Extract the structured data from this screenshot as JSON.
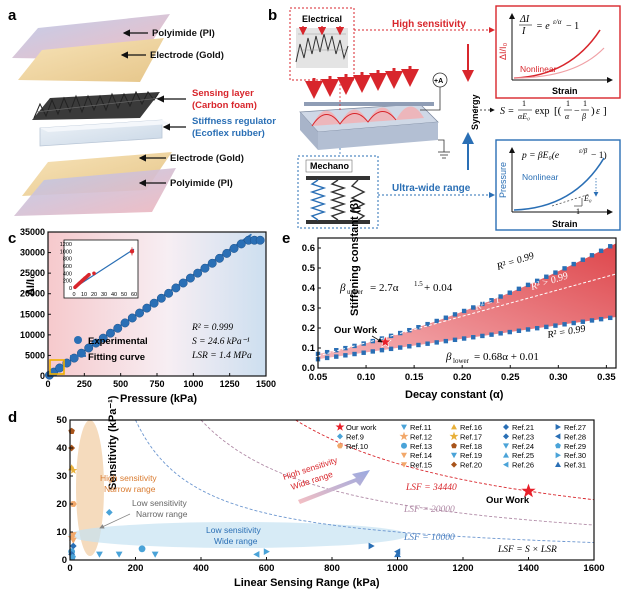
{
  "panel_labels": {
    "a": "a",
    "b": "b",
    "c": "c",
    "d": "d",
    "e": "e"
  },
  "panel_a": {
    "layers": [
      {
        "label": "Polyimide (PI)",
        "color": "#111111"
      },
      {
        "label": "Electrode (Gold)",
        "color": "#111111"
      },
      {
        "label": "Sensing layer",
        "color": "#d8262c"
      },
      {
        "label": "(Carbon foam)",
        "color": "#d8262c"
      },
      {
        "label": "Stiffness regulator",
        "color": "#2a6fb5"
      },
      {
        "label": "(Ecoflex rubber)",
        "color": "#2a6fb5"
      },
      {
        "label": "Electrode (Gold)",
        "color": "#111111"
      },
      {
        "label": "Polyimide (PI)",
        "color": "#111111"
      }
    ]
  },
  "panel_b": {
    "electrical_label": "Electrical",
    "mechano_label": "Mechano",
    "high_sensitivity": "High sensitivity",
    "ultra_wide": "Ultra-wide range",
    "synergy": "Synergy",
    "ammeter": "+A",
    "top_eq": {
      "lhs": "ΔI",
      "lhs_den": "I",
      "rhs": "= e",
      "exp": "ε/α",
      "tail": " − 1"
    },
    "top_nonlinear": "Nonlinear",
    "top_strain": "Strain",
    "top_ylabel": "ΔI/I₀",
    "mid_eq": {
      "lhs": "S =",
      "num": "1",
      "den": "αE₀",
      "mid": "exp",
      "f1n": "1",
      "f1d": "α",
      "f2n": "1",
      "f2d": "β",
      "tail": "ε"
    },
    "bot_eq": {
      "lhs": "p = βE₀(e",
      "exp": "ε/β",
      "tail": " − 1)"
    },
    "bot_nonlinear": "Nonlinear",
    "bot_one": "1",
    "bot_e0": "E₀",
    "bot_strain": "Strain",
    "bot_ylabel": "Pressure",
    "colors": {
      "red": "#d8262c",
      "blue": "#2a6fb5"
    }
  },
  "panel_c": {
    "xlabel": "Pressure (kPa)",
    "ylabel": "ΔI/I₀",
    "r2": "R² = 0.999",
    "s": "S = 24.6 kPa⁻¹",
    "lsr": "LSR = 1.4 MPa",
    "legend": [
      "Experimental",
      "Fitting curve"
    ]
  },
  "panel_d": {
    "xlabel": "Linear Sensing Range (kPa)",
    "ylabel": "Sensitivity (kPa⁻¹)",
    "annotations": {
      "hsnr1": "High sensitivity",
      "hsnr2": "Narrow range",
      "lsnr1": "Low sensitivity",
      "lsnr2": "Narrow range",
      "lswr1": "Low sensitivity",
      "lswr2": "Wide range",
      "hswr1": "High sensitivity",
      "hswr2": "Wide range",
      "lsf1": "LSF = 34440",
      "lsf2": "LSF = 20000",
      "lsf3": "LSF = 10000",
      "our": "Our Work",
      "formula": "LSF = S × LSR"
    },
    "legend": [
      {
        "name": "Our work",
        "color": "#e8202a",
        "shape": "star"
      },
      {
        "name": "Ref.9",
        "color": "#4aa3d8",
        "shape": "diamond"
      },
      {
        "name": "Ref.10",
        "color": "#f2a86a",
        "shape": "hexagon"
      },
      {
        "name": "Ref.11",
        "color": "#4aa3d8",
        "shape": "triangle-down"
      },
      {
        "name": "Ref.12",
        "color": "#f2a86a",
        "shape": "star"
      },
      {
        "name": "Ref.13",
        "color": "#4aa3d8",
        "shape": "circle"
      },
      {
        "name": "Ref.14",
        "color": "#f2a86a",
        "shape": "triangle-down"
      },
      {
        "name": "Ref.15",
        "color": "#f2a86a",
        "shape": "triangle-down"
      },
      {
        "name": "Ref.16",
        "color": "#e8b03a",
        "shape": "triangle-up"
      },
      {
        "name": "Ref.17",
        "color": "#e8b03a",
        "shape": "star"
      },
      {
        "name": "Ref.18",
        "color": "#a8541a",
        "shape": "pentagon"
      },
      {
        "name": "Ref.19",
        "color": "#4aa3d8",
        "shape": "triangle-down"
      },
      {
        "name": "Ref.20",
        "color": "#a8541a",
        "shape": "diamond"
      },
      {
        "name": "Ref.21",
        "color": "#2a6fb5",
        "shape": "diamond"
      },
      {
        "name": "Ref.23",
        "color": "#2a6fb5",
        "shape": "diamond"
      },
      {
        "name": "Ref.24",
        "color": "#4aa3d8",
        "shape": "triangle-down"
      },
      {
        "name": "Ref.25",
        "color": "#4aa3d8",
        "shape": "triangle-up"
      },
      {
        "name": "Ref.26",
        "color": "#4aa3d8",
        "shape": "triangle-left"
      },
      {
        "name": "Ref.27",
        "color": "#2a6fb5",
        "shape": "triangle-right"
      },
      {
        "name": "Ref.28",
        "color": "#2a6fb5",
        "shape": "triangle-left"
      },
      {
        "name": "Ref.29",
        "color": "#4aa3d8",
        "shape": "pentagon"
      },
      {
        "name": "Ref.30",
        "color": "#4aa3d8",
        "shape": "triangle-right"
      },
      {
        "name": "Ref.31",
        "color": "#2a6fb5",
        "shape": "triangle-up"
      }
    ]
  },
  "panel_e": {
    "xlabel": "Decay constant (α)",
    "ylabel": "Stiffening constant (β)",
    "upper_eq": "β",
    "upper_sub": "upper",
    "upper_rhs": " = 2.7α",
    "upper_exp": "1.5",
    "upper_tail": " + 0.04",
    "lower_eq": "β",
    "lower_sub": "lower",
    "lower_rhs": " = 0.68α + 0.01",
    "r2_top": "R² = 0.99",
    "r2_gt": "R² > 0.99",
    "r2_one": "R² = 1",
    "r2_bottom": "R² = 0.99",
    "our_work": "Our Work"
  },
  "chart_data": [
    {
      "type": "scatter",
      "title": "",
      "xlabel": "Pressure (kPa)",
      "ylabel": "ΔI/I₀",
      "xlim": [
        0,
        1500
      ],
      "ylim": [
        0,
        35000
      ],
      "xticks": [
        0,
        250,
        500,
        750,
        1000,
        1250,
        1500
      ],
      "yticks": [
        0,
        5000,
        10000,
        15000,
        20000,
        25000,
        30000,
        35000
      ],
      "series": [
        {
          "name": "Experimental",
          "x": [
            10,
            40,
            80,
            130,
            180,
            230,
            280,
            330,
            380,
            430,
            480,
            530,
            580,
            630,
            680,
            730,
            780,
            830,
            880,
            930,
            980,
            1030,
            1080,
            1130,
            1180,
            1230,
            1280,
            1330,
            1380,
            1420,
            1460
          ],
          "y": [
            200,
            950,
            1950,
            3150,
            4350,
            5550,
            6800,
            8000,
            9200,
            10400,
            11600,
            12900,
            14100,
            15300,
            16500,
            17700,
            18900,
            20100,
            21400,
            22600,
            23800,
            25000,
            26200,
            27400,
            28600,
            29800,
            31000,
            32100,
            33000,
            33000,
            33000
          ]
        },
        {
          "name": "Fitting curve",
          "x": [
            0,
            1400
          ],
          "y": [
            0,
            34440
          ]
        }
      ],
      "inset": {
        "xlim": [
          0,
          60
        ],
        "ylim": [
          0,
          1200
        ],
        "xticks": [
          0,
          10,
          20,
          30,
          40,
          50,
          60
        ],
        "yticks": [
          0,
          200,
          400,
          600,
          800,
          1000,
          1200
        ],
        "x": [
          1,
          2,
          3,
          4,
          5,
          6,
          7,
          8,
          9,
          10,
          11,
          12,
          13,
          14,
          15,
          20,
          58
        ],
        "y": [
          20,
          45,
          70,
          95,
          120,
          145,
          170,
          195,
          220,
          245,
          270,
          290,
          315,
          340,
          365,
          400,
          1000
        ]
      }
    },
    {
      "type": "scatter",
      "title": "",
      "xlabel": "Linear Sensing Range (kPa)",
      "ylabel": "Sensitivity (kPa⁻¹)",
      "xlim": [
        0,
        1600
      ],
      "ylim": [
        0,
        50
      ],
      "xticks": [
        0,
        200,
        400,
        600,
        800,
        1000,
        1200,
        1400,
        1600
      ],
      "yticks": [
        0,
        10,
        20,
        30,
        40,
        50
      ],
      "curves_lsf": [
        34440,
        20000,
        10000
      ],
      "points": [
        {
          "ref": "Our work",
          "x": 1400,
          "y": 24.6
        },
        {
          "ref": "Ref.18",
          "x": 5,
          "y": 46
        },
        {
          "ref": "Ref.20",
          "x": 5,
          "y": 40
        },
        {
          "ref": "Ref.16",
          "x": 5,
          "y": 33
        },
        {
          "ref": "Ref.17",
          "x": 10,
          "y": 32
        },
        {
          "ref": "Ref.10",
          "x": 10,
          "y": 20
        },
        {
          "ref": "Ref.14",
          "x": 10,
          "y": 9
        },
        {
          "ref": "Ref.12",
          "x": 5,
          "y": 8
        },
        {
          "ref": "Ref.15",
          "x": 10,
          "y": 7
        },
        {
          "ref": "Ref.21",
          "x": 10,
          "y": 5
        },
        {
          "ref": "Ref.13",
          "x": 5,
          "y": 3
        },
        {
          "ref": "Ref.23",
          "x": 5,
          "y": 2
        },
        {
          "ref": "Ref.29",
          "x": 8,
          "y": 1
        },
        {
          "ref": "Ref.9",
          "x": 120,
          "y": 17
        },
        {
          "ref": "Ref.13",
          "x": 220,
          "y": 4
        },
        {
          "ref": "Ref.11",
          "x": 150,
          "y": 2
        },
        {
          "ref": "Ref.19",
          "x": 90,
          "y": 2
        },
        {
          "ref": "Ref.24",
          "x": 260,
          "y": 2
        },
        {
          "ref": "Ref.26",
          "x": 570,
          "y": 2
        },
        {
          "ref": "Ref.27",
          "x": 920,
          "y": 5
        },
        {
          "ref": "Ref.28",
          "x": 1000,
          "y": 3
        },
        {
          "ref": "Ref.31",
          "x": 1000,
          "y": 2
        },
        {
          "ref": "Ref.30",
          "x": 600,
          "y": 3
        }
      ]
    },
    {
      "type": "scatter",
      "title": "",
      "xlabel": "Decay constant (α)",
      "ylabel": "Stiffening constant (β)",
      "xlim": [
        0.05,
        0.36
      ],
      "ylim": [
        0,
        0.65
      ],
      "xticks": [
        0.05,
        0.1,
        0.15,
        0.2,
        0.25,
        0.3,
        0.35
      ],
      "yticks": [
        0,
        0.1,
        0.2,
        0.3,
        0.4,
        0.5,
        0.6
      ],
      "our_work": {
        "x": 0.12,
        "y": 0.13
      }
    }
  ]
}
